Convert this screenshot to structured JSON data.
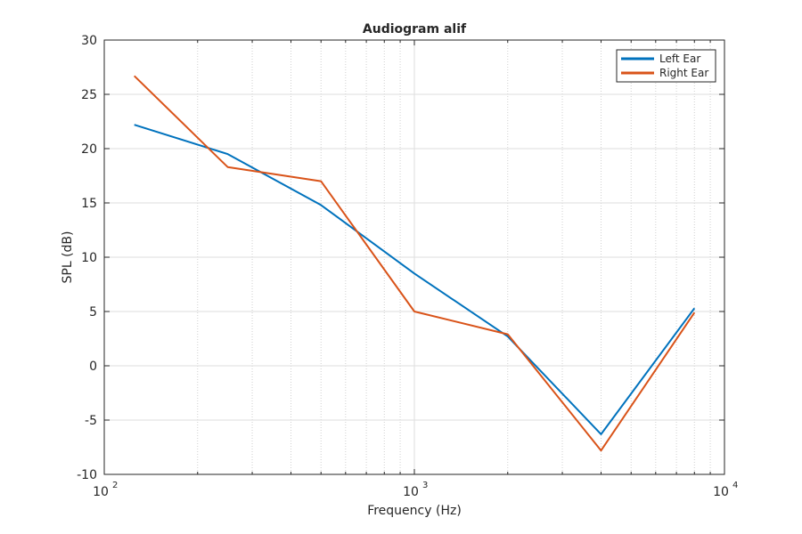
{
  "chart_data": {
    "type": "line",
    "title": "Audiogram alif",
    "xlabel": "Frequency (Hz)",
    "ylabel": "SPL (dB)",
    "xscale": "log",
    "xlim": [
      100,
      10000
    ],
    "ylim": [
      -10,
      30
    ],
    "grid": true,
    "minor_grid_x": true,
    "legend_position": "top-right",
    "x": [
      125,
      250,
      500,
      1000,
      2000,
      4000,
      8000
    ],
    "series": [
      {
        "name": "Left Ear",
        "color": "#0072bd",
        "values": [
          22.2,
          19.5,
          14.8,
          8.5,
          2.7,
          -6.3,
          5.3
        ]
      },
      {
        "name": "Right Ear",
        "color": "#d95319",
        "values": [
          26.7,
          18.3,
          17.0,
          5.0,
          2.9,
          -7.8,
          4.9
        ]
      }
    ],
    "yticks": [
      {
        "value": -10,
        "label": "-10"
      },
      {
        "value": -5,
        "label": "-5"
      },
      {
        "value": 0,
        "label": "0"
      },
      {
        "value": 5,
        "label": "5"
      },
      {
        "value": 10,
        "label": "10"
      },
      {
        "value": 15,
        "label": "15"
      },
      {
        "value": 20,
        "label": "20"
      },
      {
        "value": 25,
        "label": "25"
      },
      {
        "value": 30,
        "label": "30"
      }
    ],
    "xticks": [
      {
        "value": 100,
        "base": "10",
        "exp": "2"
      },
      {
        "value": 1000,
        "base": "10",
        "exp": "3"
      },
      {
        "value": 10000,
        "base": "10",
        "exp": "4"
      }
    ]
  }
}
